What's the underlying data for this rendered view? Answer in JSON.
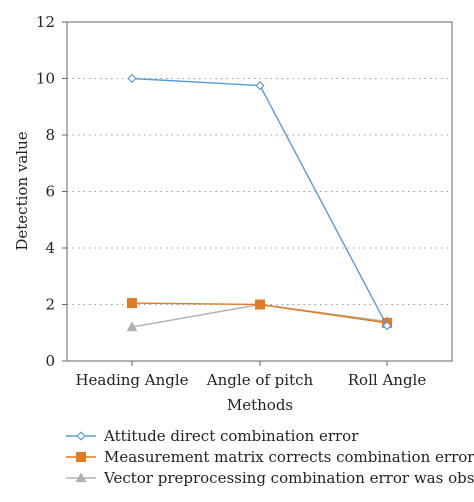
{
  "chart_data": {
    "type": "line",
    "xlabel": "Methods",
    "ylabel": "Detection value",
    "categories": [
      "Heading Angle",
      "Angle of pitch",
      "Roll Angle"
    ],
    "ylim": [
      0,
      12
    ],
    "yticks": [
      "0",
      "2",
      "4",
      "6",
      "8",
      "10",
      "12"
    ],
    "grid": true,
    "legend_position": "bottom",
    "series": [
      {
        "name": "Attitude direct combination error",
        "values": [
          10.0,
          9.75,
          1.25
        ],
        "color": "#5b9bd5",
        "marker": "diamond"
      },
      {
        "name": "Measurement matrix corrects combination error",
        "values": [
          2.05,
          2.0,
          1.35
        ],
        "color": "#e07b24",
        "marker": "square"
      },
      {
        "name": "Vector preprocessing combination error was observed",
        "values": [
          1.2,
          2.0,
          1.4
        ],
        "color": "#b0b0b0",
        "marker": "triangle"
      }
    ]
  }
}
